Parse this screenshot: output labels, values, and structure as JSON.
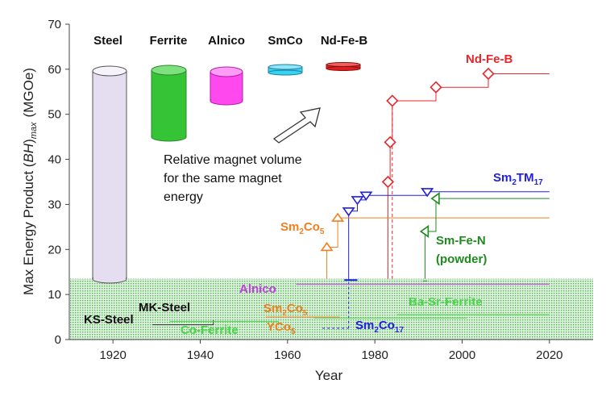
{
  "chart_data": {
    "type": "line",
    "xlabel": "Year",
    "ylabel": "Max Energy Product (BH)max (MGOe)",
    "ylabel_parts": {
      "pre": "Max Energy Product (",
      "bh": "BH",
      "close": ")",
      "sub": "max",
      "unit": "(MGOe)"
    },
    "xlim": [
      1910,
      2030
    ],
    "ylim": [
      0,
      70
    ],
    "xticks": [
      "1920",
      "1940",
      "1960",
      "1980",
      "2000",
      "2020"
    ],
    "yticks": [
      "0",
      "10",
      "20",
      "30",
      "40",
      "50",
      "60",
      "70"
    ],
    "grid": false,
    "shaded_band_ymax": 13.5,
    "magnet_volume_labels": [
      "Steel",
      "Ferrite",
      "Alnico",
      "SmCo",
      "Nd-Fe-B"
    ],
    "volume_note": [
      "Relative magnet volume",
      "for the same magnet",
      "energy"
    ],
    "series": [
      {
        "name": "Nd-Fe-B",
        "color": "#e8262b",
        "marker": "diamond",
        "x": [
          1983,
          1983.5,
          1984,
          1994,
          2006
        ],
        "y": [
          35,
          43.8,
          53,
          56,
          59
        ],
        "extend_to": 2020
      },
      {
        "name": "Sm2TM17",
        "color": "#1f1fe0",
        "marker": "triangle-down",
        "x": [
          1974,
          1976,
          1978,
          1992
        ],
        "y": [
          28.5,
          31,
          32,
          32.8
        ],
        "extend_to": 2020
      },
      {
        "name": "Sm2Co5",
        "color": "#f07f1e",
        "marker": "triangle-up",
        "x": [
          1969,
          1971.5
        ],
        "y": [
          20.5,
          27
        ],
        "extend_to": 2020
      },
      {
        "name": "Sm-Fe-N",
        "color": "#1e8a1e",
        "marker": "triangle-left",
        "x": [
          1991.5,
          1994
        ],
        "y": [
          24,
          31.3
        ],
        "extend_to": 2020
      },
      {
        "name": "Alnico",
        "color": "#c040e0",
        "marker": "none",
        "x": [
          1962,
          2020
        ],
        "y": [
          12.3,
          12.3
        ]
      },
      {
        "name": "Ba-Sr-Ferrite",
        "color": "#4cd64c",
        "marker": "none",
        "x": [
          1985,
          2020
        ],
        "y": [
          5.5,
          5.5
        ]
      }
    ],
    "annotations": {
      "ndfeb": "Nd-Fe-B",
      "sm2tm17": {
        "main": "Sm",
        "sub1": "2",
        "mid": "TM",
        "sub2": "17"
      },
      "sm2co5_upper": {
        "main": "Sm",
        "sub1": "2",
        "mid": "Co",
        "sub2": "5"
      },
      "smfen": [
        "Sm-Fe-N",
        "(powder)"
      ],
      "alnico": "Alnico",
      "ks_steel": "KS-Steel",
      "mk_steel": "MK-Steel",
      "co_ferrite": "Co-Ferrite",
      "sm2co5_lower": {
        "main": "Sm",
        "sub1": "2",
        "mid": "Co",
        "sub2": "5"
      },
      "yco5": {
        "main": "YCo",
        "sub1": "5"
      },
      "sm2co17": {
        "main": "Sm",
        "sub1": "2",
        "mid": "Co",
        "sub2": "17"
      },
      "ba_sr_ferrite": "Ba-Sr-Ferrite"
    },
    "colors": {
      "band": "#4caf50",
      "steel_cylinder": "#e4def0",
      "ferrite_cylinder": "#35c435",
      "alnico_cylinder": "#ff49ee",
      "smco_cylinder": "#39d3f2",
      "ndfeb_cylinder": "#e02020"
    }
  }
}
